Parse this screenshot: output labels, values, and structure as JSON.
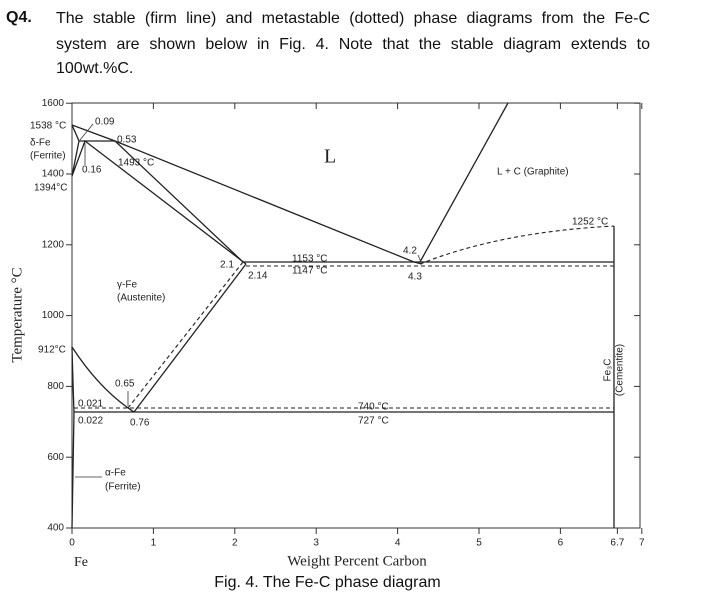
{
  "question": {
    "number": "Q4.",
    "lines": [
      "The stable (firm line) and metastable (dotted) phase diagrams from the Fe-C",
      "system are shown below in Fig. 4. Note that the stable diagram extends to",
      "100wt.%C."
    ]
  },
  "figure": {
    "y_axis_title": "Temperature °C",
    "x_axis_title": "Weight Percent Carbon",
    "x_origin_label": "Fe",
    "yticks": [
      400,
      600,
      800,
      1000,
      1200,
      1400,
      1600
    ],
    "xticks": [
      0,
      1,
      2,
      3,
      4,
      5,
      6,
      6.7,
      7
    ],
    "labels": [
      "1538 °C",
      "δ-Fe",
      "(Ferrite)",
      "1394°C",
      "0.09",
      "0.53",
      "0.16",
      "1493 °C",
      "L",
      "L + C (Graphite)",
      "1252 °C",
      "2.1",
      "2.14",
      "1153 °C",
      "1147 °C",
      "4.2",
      "4.3",
      "γ-Fe",
      "(Austenite)",
      "912°C",
      "0.65",
      "0.021",
      "0.022",
      "0.76",
      "740 °C",
      "727 °C",
      "α-Fe",
      "(Ferrite)",
      "Fe₃C",
      "(Cementite)"
    ]
  },
  "caption": "Fig. 4. The Fe-C phase diagram"
}
